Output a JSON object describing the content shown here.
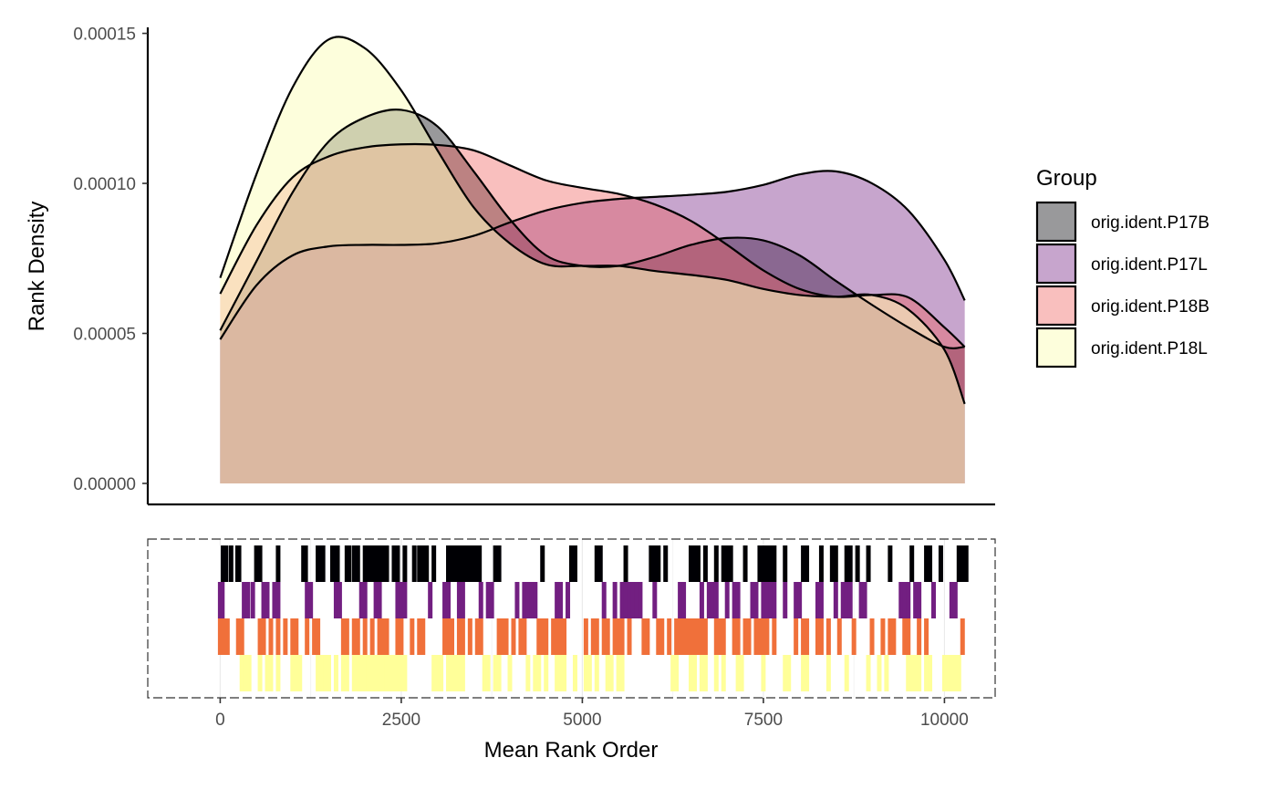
{
  "chart_data": {
    "type": "area",
    "subtype": "density-with-rug",
    "ylabel": "Rank Density",
    "xlabel": "Mean Rank Order",
    "xlim": [
      -1000,
      10700
    ],
    "ylim": [
      -7e-06,
      0.000152
    ],
    "x_ticks": [
      0,
      2500,
      5000,
      7500,
      10000
    ],
    "x_tick_labels": [
      "0",
      "2500",
      "5000",
      "7500",
      "10000"
    ],
    "y_ticks": [
      0,
      5e-05,
      0.0001,
      0.00015
    ],
    "y_tick_labels": [
      "0.00000",
      "0.00005",
      "0.00010",
      "0.00015"
    ],
    "grid": false,
    "legend_title": "Group",
    "legend_position": "right",
    "series": [
      {
        "name": "orig.ident.P17B",
        "color": "#000004",
        "fill_opacity": 0.4,
        "density": {
          "x": [
            0,
            500,
            1000,
            1500,
            2000,
            2500,
            3000,
            3500,
            4000,
            4500,
            5000,
            5500,
            6000,
            6500,
            7000,
            7500,
            8000,
            8500,
            9000,
            9500,
            10000,
            10280
          ],
          "y": [
            5.1e-05,
            7.4e-05,
            9.7e-05,
            0.000114,
            0.000122,
            0.0001245,
            0.000119,
            0.000104,
            8.8e-05,
            7.6e-05,
            7.25e-05,
            7.25e-05,
            7.55e-05,
            7.95e-05,
            8.18e-05,
            8.1e-05,
            7.6e-05,
            6.75e-05,
            5.95e-05,
            5.2e-05,
            4.55e-05,
            4.55e-05
          ]
        },
        "rug": [
          40,
          80,
          150,
          240,
          260,
          500,
          550,
          800,
          1150,
          1180,
          1350,
          1380,
          1420,
          1550,
          1580,
          1620,
          1750,
          1780,
          1850,
          1880,
          1900,
          2000,
          2050,
          2100,
          2150,
          2200,
          2250,
          2300,
          2400,
          2450,
          2550,
          2680,
          2750,
          2800,
          2850,
          2950,
          3150,
          3200,
          3250,
          3300,
          3350,
          3400,
          3450,
          3500,
          3550,
          3580,
          3800,
          3850,
          4450,
          4850,
          4900,
          5200,
          5250,
          5600,
          5950,
          6000,
          6050,
          6150,
          6500,
          6550,
          6600,
          6700,
          6850,
          6950,
          7000,
          7050,
          7250,
          7450,
          7500,
          7550,
          7600,
          7650,
          7800,
          8050,
          8100,
          8300,
          8450,
          8500,
          8650,
          8700,
          8800,
          8950,
          9250,
          9550,
          9750,
          9800,
          9950,
          10200,
          10250,
          10300
        ]
      },
      {
        "name": "orig.ident.P17L",
        "color": "#721F81",
        "fill_opacity": 0.4,
        "density": {
          "x": [
            0,
            500,
            1000,
            1500,
            2000,
            2500,
            3000,
            3500,
            4000,
            4500,
            5000,
            5500,
            6000,
            6500,
            7000,
            7500,
            8000,
            8500,
            9000,
            9500,
            10000,
            10280
          ],
          "y": [
            4.8e-05,
            6.6e-05,
            7.6e-05,
            7.9e-05,
            7.95e-05,
            7.95e-05,
            8e-05,
            8.25e-05,
            8.7e-05,
            9.1e-05,
            9.35e-05,
            9.48e-05,
            9.55e-05,
            9.62e-05,
            9.72e-05,
            9.95e-05,
            0.000103,
            0.000104,
            0.0001,
            9.1e-05,
            7.45e-05,
            6.1e-05
          ]
        },
        "rug": [
          0,
          30,
          330,
          380,
          450,
          600,
          650,
          750,
          800,
          1200,
          1250,
          1600,
          1650,
          1950,
          2000,
          2150,
          2200,
          2450,
          2500,
          2550,
          2900,
          3100,
          3150,
          3300,
          3350,
          3600,
          3700,
          3750,
          4100,
          4200,
          4250,
          4300,
          4350,
          4650,
          4700,
          4800,
          5300,
          5450,
          5550,
          5600,
          5650,
          5700,
          5750,
          5800,
          6000,
          6350,
          6400,
          6650,
          6750,
          6800,
          6850,
          7000,
          7100,
          7150,
          7350,
          7400,
          7500,
          7550,
          7600,
          7650,
          7800,
          7950,
          8000,
          8250,
          8300,
          8500,
          8600,
          8650,
          8700,
          8850,
          8900,
          9400,
          9450,
          9500,
          9600,
          9650,
          9850,
          10100,
          10150
        ]
      },
      {
        "name": "orig.ident.P18B",
        "color": "#F1605D",
        "fill_opacity": 0.4,
        "density": {
          "x": [
            0,
            500,
            1000,
            1500,
            2000,
            2500,
            3000,
            3500,
            4000,
            4500,
            5000,
            5500,
            6000,
            6500,
            7000,
            7500,
            8000,
            8500,
            9000,
            9500,
            10000,
            10280
          ],
          "y": [
            6.32e-05,
            8.6e-05,
            0.000102,
            0.000109,
            0.000112,
            0.000113,
            0.0001128,
            0.000111,
            0.000106,
            0.000101,
            9.85e-05,
            9.65e-05,
            9.3e-05,
            8.75e-05,
            7.95e-05,
            7.1e-05,
            6.48e-05,
            6.22e-05,
            6.28e-05,
            6.2e-05,
            5.2e-05,
            4.55e-05
          ]
        },
        "rug": [
          0,
          50,
          100,
          250,
          300,
          550,
          600,
          700,
          800,
          900,
          1000,
          1050,
          1200,
          1300,
          1350,
          1700,
          1750,
          1850,
          1900,
          2000,
          2100,
          2200,
          2250,
          2300,
          2450,
          2500,
          2650,
          2750,
          2800,
          3100,
          3150,
          3200,
          3300,
          3350,
          3450,
          3550,
          3600,
          3850,
          3900,
          3950,
          4050,
          4150,
          4200,
          4400,
          4450,
          4500,
          4600,
          4650,
          4700,
          4750,
          5050,
          5150,
          5200,
          5300,
          5350,
          5450,
          5500,
          5550,
          5650,
          5850,
          5900,
          6050,
          6100,
          6200,
          6300,
          6350,
          6400,
          6450,
          6500,
          6550,
          6600,
          6650,
          6700,
          6850,
          6900,
          6950,
          7100,
          7150,
          7250,
          7300,
          7400,
          7450,
          7500,
          7550,
          7650,
          7950,
          8050,
          8100,
          8250,
          8300,
          8400,
          8550,
          8750,
          9000,
          9150,
          9250,
          9300,
          9450,
          9500,
          9650,
          9750,
          10250
        ]
      },
      {
        "name": "orig.ident.P18L",
        "color": "#FCFDBF",
        "fill_opacity": 0.55,
        "density": {
          "x": [
            0,
            500,
            1000,
            1500,
            2000,
            2500,
            3000,
            3500,
            4000,
            4500,
            5000,
            5500,
            6000,
            6500,
            7000,
            7500,
            8000,
            8500,
            9000,
            9500,
            10000,
            10280
          ],
          "y": [
            6.85e-05,
            0.000103,
            0.000132,
            0.000148,
            0.000145,
            0.000131,
            0.000111,
            9.2e-05,
            8e-05,
            7.3e-05,
            7.25e-05,
            7.25e-05,
            7.08e-05,
            6.95e-05,
            6.78e-05,
            6.48e-05,
            6.28e-05,
            6.22e-05,
            6.28e-05,
            5.8e-05,
            4.45e-05,
            2.65e-05
          ]
        },
        "rug": [
          300,
          350,
          400,
          550,
          650,
          700,
          800,
          1000,
          1050,
          1100,
          1350,
          1400,
          1450,
          1500,
          1600,
          1700,
          1750,
          1850,
          1900,
          1950,
          2000,
          2050,
          2100,
          2150,
          2200,
          2250,
          2300,
          2350,
          2400,
          2450,
          2500,
          2550,
          2950,
          3000,
          3050,
          3150,
          3200,
          3250,
          3300,
          3350,
          3650,
          3700,
          3800,
          3850,
          4000,
          4250,
          4350,
          4400,
          4500,
          4650,
          4700,
          4750,
          4900,
          5050,
          5100,
          5200,
          5350,
          5400,
          5500,
          5550,
          6250,
          6300,
          6500,
          6550,
          6650,
          6700,
          6850,
          6950,
          7150,
          7200,
          7500,
          7800,
          7850,
          8050,
          8100,
          8400,
          8650,
          8950,
          9100,
          9200,
          9500,
          9550,
          9600,
          9650,
          9750,
          9800,
          10000,
          10050,
          10100,
          10150,
          10200
        ]
      }
    ]
  }
}
